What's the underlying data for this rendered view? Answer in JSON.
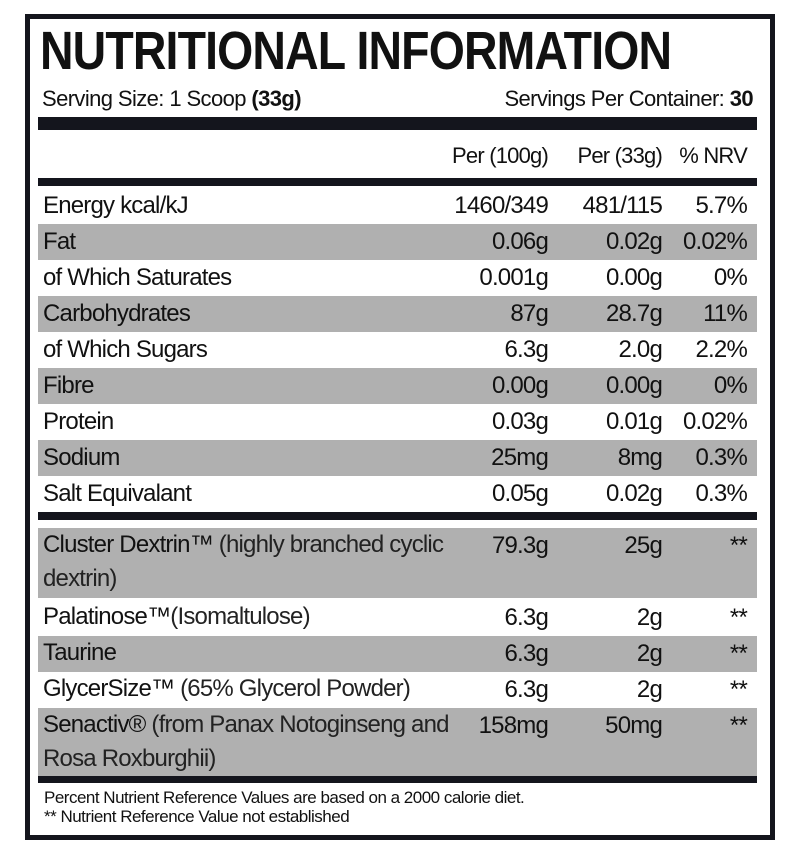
{
  "title": "NUTRITIONAL INFORMATION",
  "serving_size": {
    "label": "Serving Size: 1 Scoop ",
    "value": "(33g)"
  },
  "servings_per_container": {
    "label": "Servings Per Container: ",
    "value": "30"
  },
  "columns": [
    "Per (100g)",
    "Per (33g)",
    "% NRV"
  ],
  "nutrients": [
    {
      "name": "Energy kcal/kJ",
      "per100": "1460/349",
      "per33": "481/115",
      "nrv": "5.7%"
    },
    {
      "name": "Fat",
      "per100": "0.06g",
      "per33": "0.02g",
      "nrv": "0.02%"
    },
    {
      "name": "of Which Saturates",
      "per100": "0.001g",
      "per33": "0.00g",
      "nrv": "0%"
    },
    {
      "name": "Carbohydrates",
      "per100": "87g",
      "per33": "28.7g",
      "nrv": "11%"
    },
    {
      "name": "of Which Sugars",
      "per100": "6.3g",
      "per33": "2.0g",
      "nrv": "2.2%"
    },
    {
      "name": "Fibre",
      "per100": "0.00g",
      "per33": "0.00g",
      "nrv": "0%"
    },
    {
      "name": "Protein",
      "per100": "0.03g",
      "per33": "0.01g",
      "nrv": "0.02%"
    },
    {
      "name": "Sodium",
      "per100": "25mg",
      "per33": "8mg",
      "nrv": "0.3%"
    },
    {
      "name": "Salt Equivalant",
      "per100": "0.05g",
      "per33": "0.02g",
      "nrv": "0.3%"
    }
  ],
  "ingredients": [
    {
      "name": "Cluster Dextrin™",
      "desc": " (highly branched cyclic dextrin)",
      "per100": "79.3g",
      "per33": "25g",
      "nrv": "**"
    },
    {
      "name": "Palatinose™",
      "desc": "(Isomaltulose)",
      "per100": "6.3g",
      "per33": "2g",
      "nrv": "**"
    },
    {
      "name": "Taurine",
      "desc": "",
      "per100": "6.3g",
      "per33": "2g",
      "nrv": "**"
    },
    {
      "name": "GlycerSize™",
      "desc": " (65% Glycerol Powder)",
      "per100": "6.3g",
      "per33": "2g",
      "nrv": "**"
    },
    {
      "name": "Senactiv®",
      "desc": " (from Panax Notoginseng and Rosa Roxburghii)",
      "per100": "158mg",
      "per33": "50mg",
      "nrv": "**"
    }
  ],
  "footnotes": [
    "Percent Nutrient Reference Values are based on a 2000 calorie diet.",
    "** Nutrient Reference Value not established"
  ]
}
